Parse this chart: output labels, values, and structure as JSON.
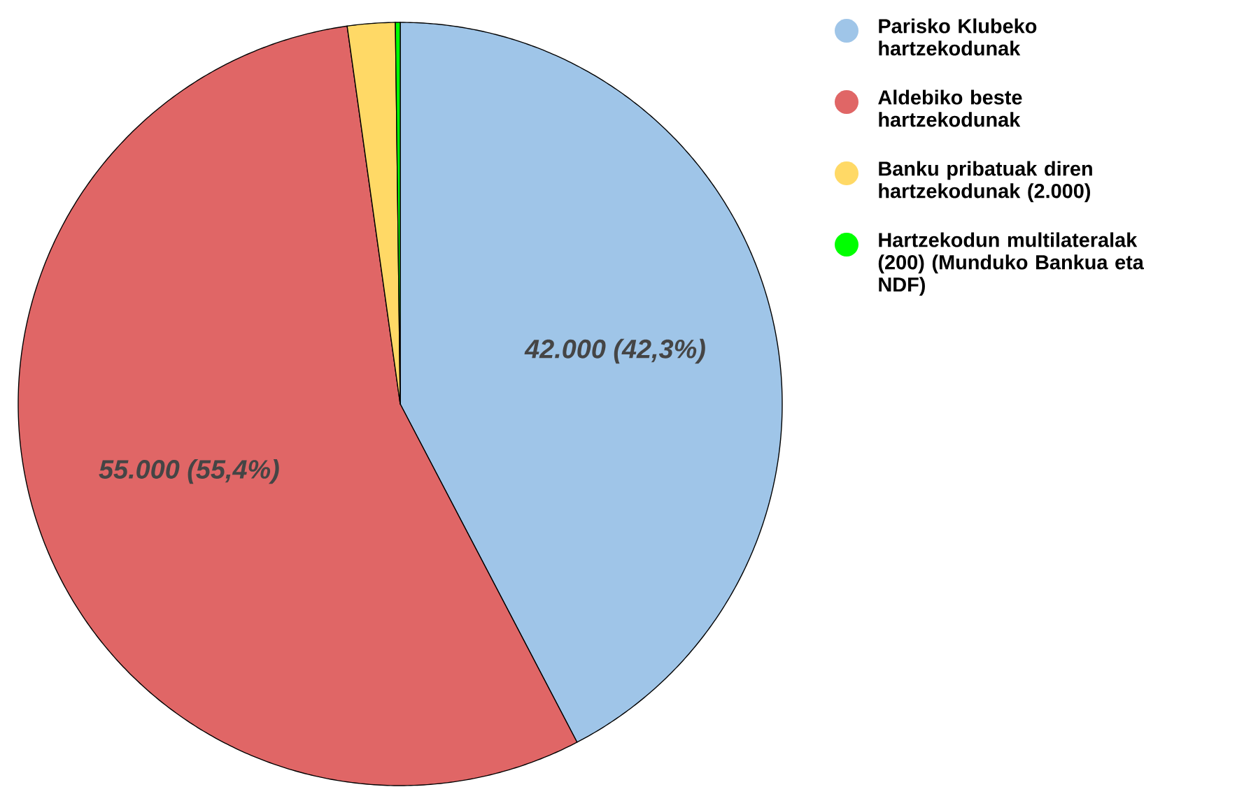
{
  "chart_data": {
    "type": "pie",
    "categories": [
      "Parisko Klubeko hartzekodunak",
      "Aldebiko beste hartzekodunak",
      "Banku pribatuak diren hartzekodunak (2.000)",
      "Hartzekodun multilateralak (200) (Munduko Bankua eta NDF)"
    ],
    "values": [
      42000,
      55000,
      2000,
      200
    ],
    "colors": [
      "#9fc5e8",
      "#e06666",
      "#ffd966",
      "#00ff00"
    ],
    "value_labels": [
      "42.000 (42,3%)",
      "55.000 (55,4%)",
      null,
      null
    ],
    "legend": "top right"
  }
}
